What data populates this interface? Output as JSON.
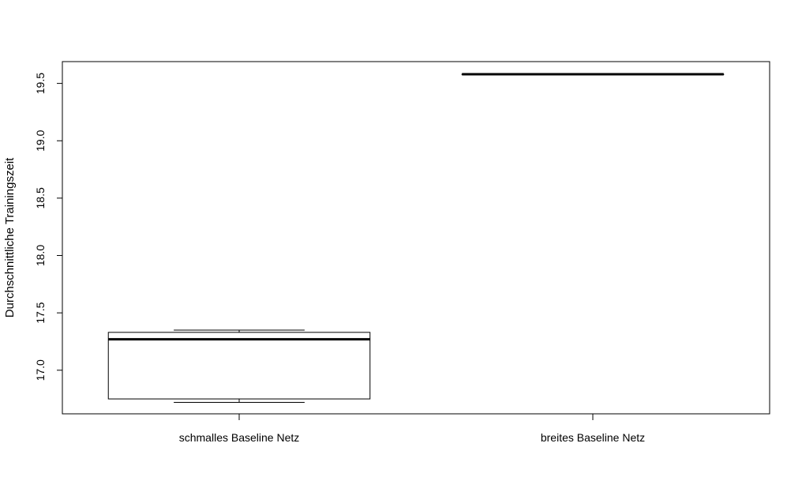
{
  "chart_data": {
    "type": "box",
    "title": "",
    "xlabel": "",
    "ylabel": "Durchschnittliche Trainingszeit",
    "ylim": [
      16.62,
      19.69
    ],
    "yticks": [
      17.0,
      17.5,
      18.0,
      18.5,
      19.0,
      19.5
    ],
    "ytick_labels": [
      "17.0",
      "17.5",
      "18.0",
      "18.5",
      "19.0",
      "19.5"
    ],
    "categories": [
      "schmalles Baseline Netz",
      "breites Baseline Netz"
    ],
    "boxes": [
      {
        "name": "schmalles Baseline Netz",
        "min": 16.72,
        "q1": 16.75,
        "median": 17.27,
        "q3": 17.33,
        "max": 17.35
      },
      {
        "name": "breites Baseline Netz",
        "min": 19.58,
        "q1": 19.58,
        "median": 19.58,
        "q3": 19.58,
        "max": 19.58
      }
    ],
    "grid": false,
    "legend": "none",
    "colors": {
      "line": "#000000",
      "box_fill": "#ffffff",
      "background": "#ffffff"
    }
  }
}
